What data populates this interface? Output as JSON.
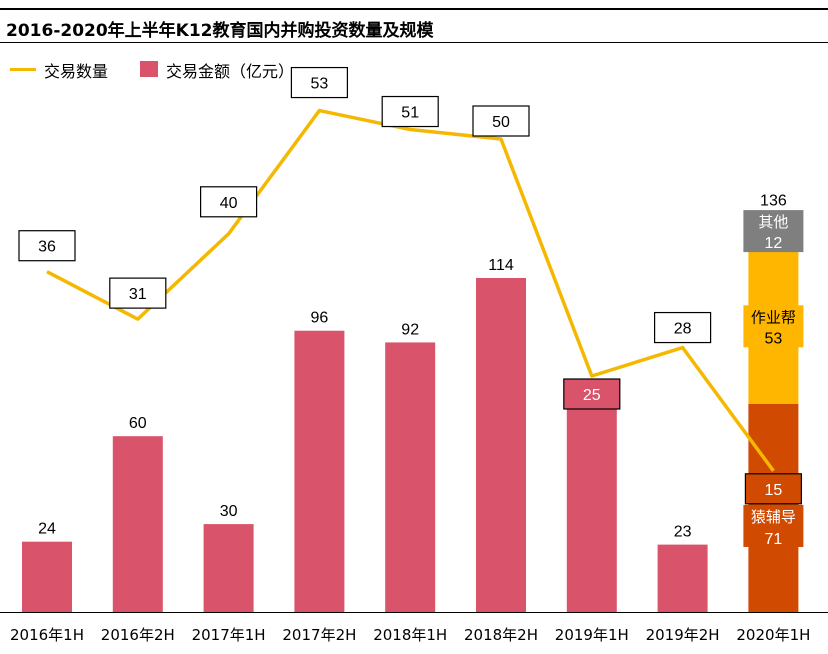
{
  "title": "2016-2020年上半年K12教育国内并购投资数量及规模",
  "legend": {
    "line_label": "交易数量",
    "bar_label": "交易金额（亿元）"
  },
  "colors": {
    "bar": "#D9536B",
    "line": "#F5B800",
    "seg_yuanfudao": "#D04A02",
    "seg_zuoyebang": "#FFB600",
    "seg_other": "#7F7F7F",
    "label_box_border": "#000000"
  },
  "chart_data": {
    "type": "bar",
    "categories": [
      "2016年1H",
      "2016年2H",
      "2017年1H",
      "2017年2H",
      "2018年1H",
      "2018年2H",
      "2019年1H",
      "2019年2H",
      "2020年1H"
    ],
    "series": [
      {
        "name": "交易金额（亿元）",
        "type": "bar",
        "values": [
          24,
          60,
          30,
          96,
          92,
          114,
          71,
          23,
          136
        ]
      },
      {
        "name": "交易数量",
        "type": "line",
        "values": [
          36,
          31,
          40,
          53,
          51,
          50,
          25,
          28,
          15
        ]
      }
    ],
    "stacked_last": {
      "category": "2020年1H",
      "total": 136,
      "segments": [
        {
          "name": "猿辅导",
          "value": 71
        },
        {
          "name": "作业帮",
          "value": 53
        },
        {
          "name": "其他",
          "value": 12
        }
      ]
    },
    "ylim_bar": [
      0,
      140
    ],
    "ylim_line": [
      0,
      60
    ],
    "grid": false,
    "legend_position": "top-left"
  }
}
